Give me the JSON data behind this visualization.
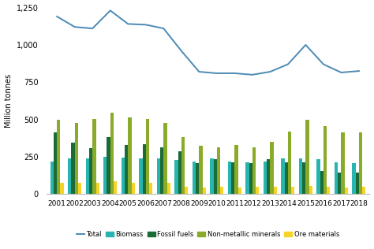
{
  "years": [
    2001,
    2002,
    2003,
    2004,
    2005,
    2006,
    2007,
    2008,
    2009,
    2010,
    2011,
    2012,
    2013,
    2014,
    2015,
    2016,
    2017,
    2018
  ],
  "total": [
    1190,
    1120,
    1110,
    1230,
    1140,
    1135,
    1110,
    960,
    820,
    810,
    810,
    800,
    820,
    870,
    1000,
    870,
    815,
    825
  ],
  "biomass": [
    220,
    240,
    240,
    250,
    245,
    240,
    240,
    230,
    220,
    240,
    220,
    215,
    220,
    240,
    240,
    235,
    215,
    210
  ],
  "fossil_fuels": [
    415,
    345,
    310,
    385,
    330,
    335,
    315,
    285,
    210,
    235,
    215,
    210,
    235,
    215,
    215,
    155,
    145,
    145
  ],
  "non_metallic_minerals": [
    500,
    475,
    505,
    545,
    515,
    505,
    480,
    385,
    325,
    315,
    330,
    315,
    350,
    420,
    500,
    455,
    415,
    415
  ],
  "ore_materials": [
    75,
    75,
    75,
    85,
    78,
    78,
    78,
    52,
    45,
    48,
    45,
    48,
    50,
    52,
    55,
    50,
    45,
    48
  ],
  "colors": {
    "total": "#4c8ab5",
    "biomass": "#28b5b0",
    "fossil_fuels": "#1a6b35",
    "non_metallic_minerals": "#8aaa2a",
    "ore_materials": "#f5d327"
  },
  "ylabel": "Million tonnes",
  "ylim": [
    0,
    1250
  ],
  "yticks": [
    0,
    250,
    500,
    750,
    1000,
    1250
  ],
  "ytick_labels": [
    "0",
    "250",
    "500",
    "750",
    "1,000",
    "1,250"
  ],
  "background_color": "#ffffff"
}
